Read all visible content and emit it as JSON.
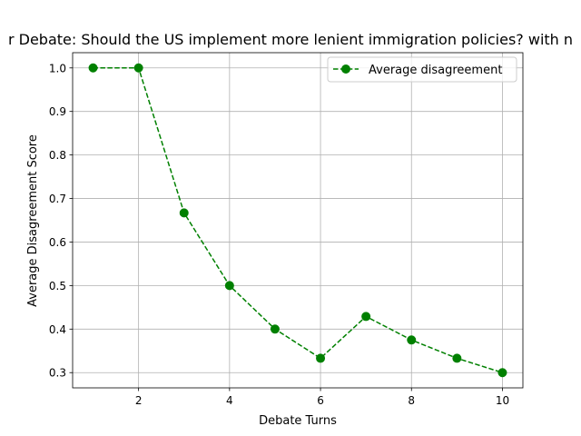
{
  "chart_data": {
    "type": "line",
    "title": "r Debate: Should the US implement more lenient immigration policies? with n",
    "xlabel": "Debate Turns",
    "ylabel": "Average Disagreement Score",
    "xlim": [
      0.55,
      10.45
    ],
    "ylim": [
      0.265,
      1.035
    ],
    "xticks": [
      2,
      4,
      6,
      8,
      10
    ],
    "yticks": [
      0.3,
      0.4,
      0.5,
      0.6,
      0.7,
      0.8,
      0.9,
      1.0
    ],
    "grid": true,
    "legend_position": "top-right",
    "series": [
      {
        "name": "Average disagreement",
        "color": "#008000",
        "line_style": "dashed",
        "marker": "circle",
        "x": [
          1,
          2,
          3,
          4,
          5,
          6,
          7,
          8,
          9,
          10
        ],
        "y": [
          1.0,
          1.0,
          0.667,
          0.5,
          0.4,
          0.333,
          0.429,
          0.375,
          0.333,
          0.3
        ]
      }
    ]
  }
}
